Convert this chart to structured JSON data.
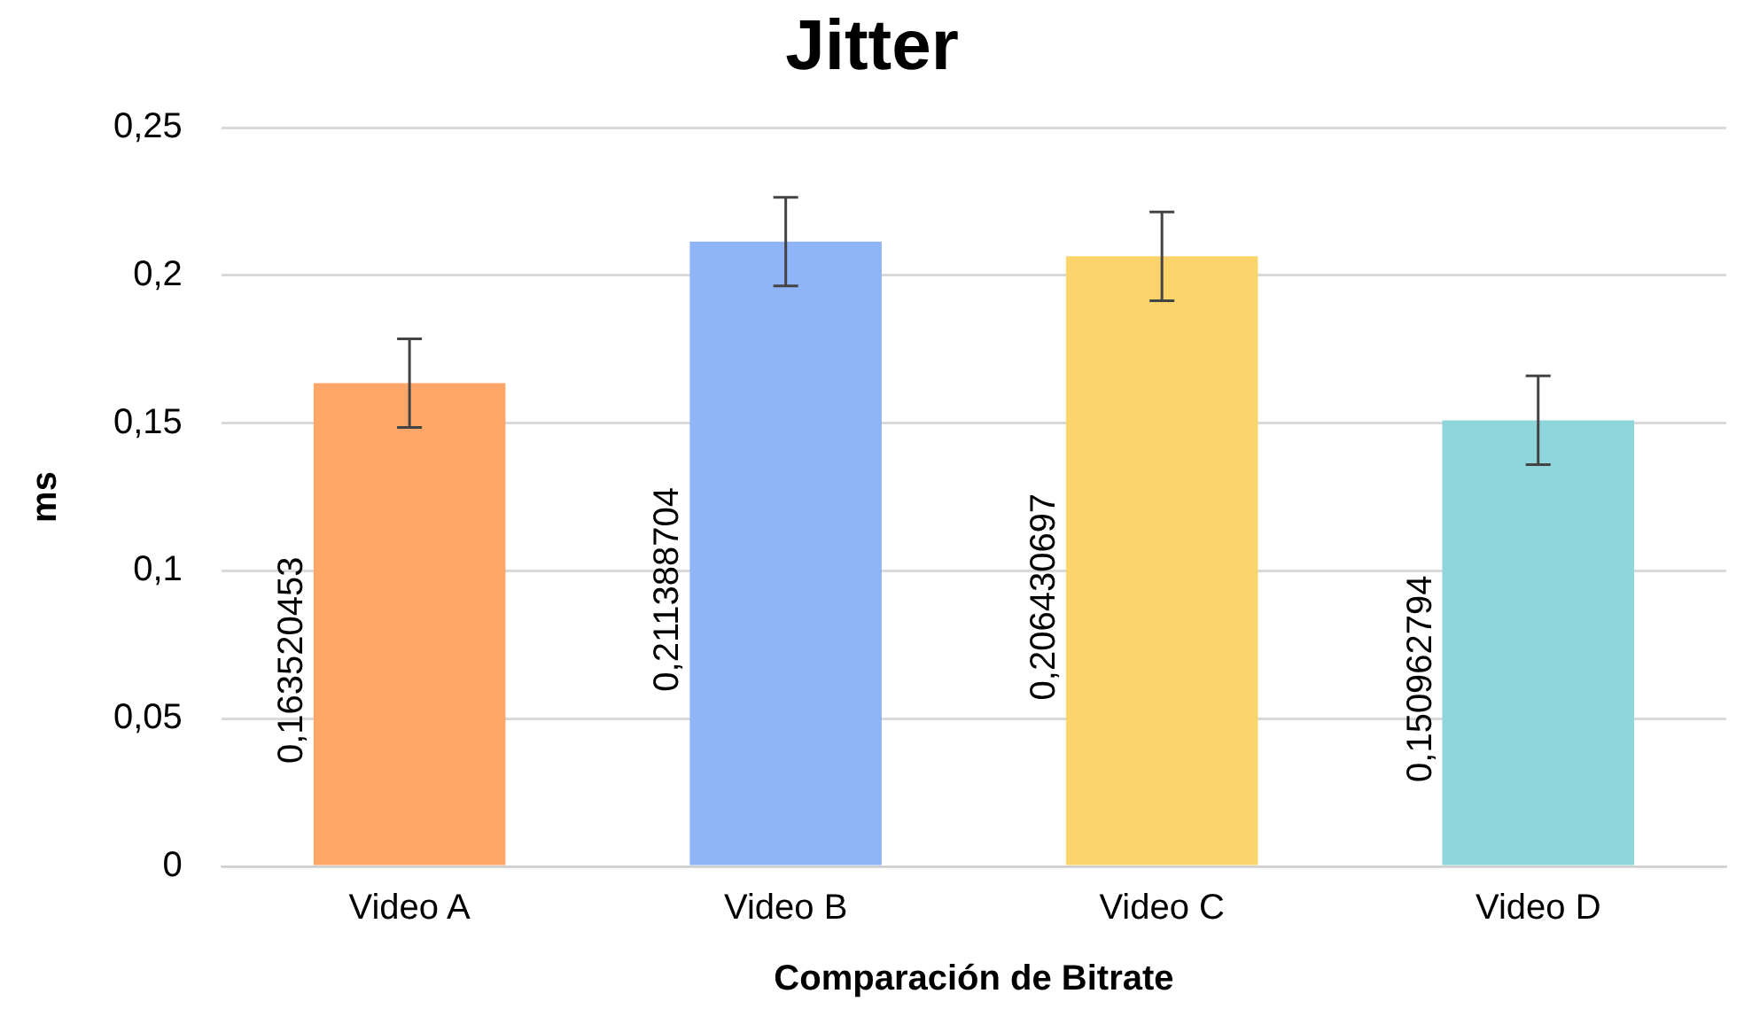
{
  "chart_data": {
    "type": "bar",
    "title": "Jitter",
    "xlabel": "Comparación de Bitrate",
    "ylabel": "ms",
    "categories": [
      "Video A",
      "Video B",
      "Video C",
      "Video D"
    ],
    "values": [
      0.163520453,
      0.211388704,
      0.206430697,
      0.150962794
    ],
    "colors": [
      "#fda668",
      "#8fb4f8",
      "#fcd46c",
      "#8fd5dc"
    ],
    "errors": [
      0.015,
      0.015,
      0.015,
      0.015
    ],
    "value_labels": [
      "0,163520453",
      "0,211388704",
      "0,206430697",
      "0,150962794"
    ],
    "ylim": [
      0,
      0.25
    ],
    "yticks": [
      0,
      {
        "value": 0.05,
        "label": "0,05"
      },
      {
        "value": 0.1,
        "label": "0,1"
      },
      {
        "value": 0.15,
        "label": "0,15"
      },
      {
        "value": 0.2,
        "label": "0,2"
      },
      {
        "value": 0.25,
        "label": "0,25"
      }
    ],
    "grid": "y",
    "legend": false
  }
}
